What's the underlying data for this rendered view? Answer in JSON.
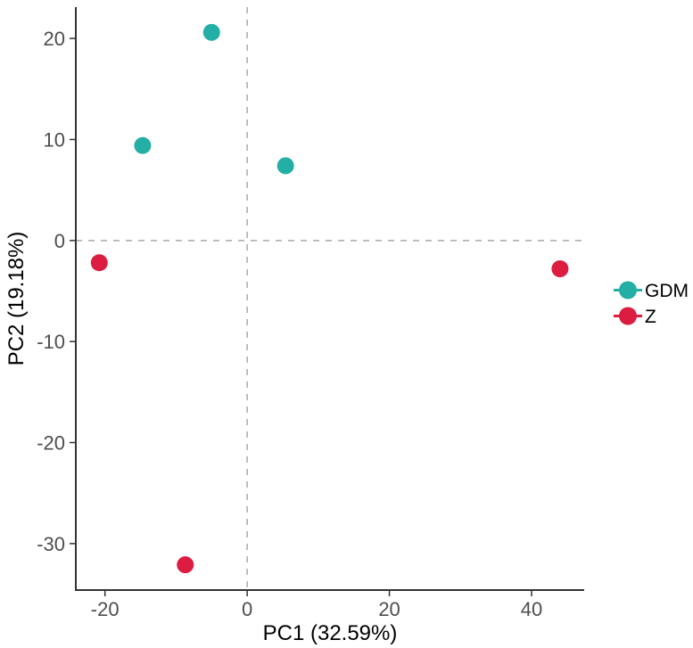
{
  "chart_data": {
    "type": "scatter",
    "title": "",
    "xlabel": "PC1 (32.59%)",
    "ylabel": "PC2 (19.18%)",
    "xlim": [
      -24.1,
      47.4
    ],
    "ylim": [
      -34.6,
      23.1
    ],
    "x_ticks": [
      -20,
      0,
      20,
      40
    ],
    "y_ticks": [
      20,
      10,
      0,
      -10,
      -20,
      -30
    ],
    "grid": false,
    "legend_position": "right-center",
    "reference_lines": [
      {
        "axis": "v",
        "value": 0,
        "style": "dashed"
      },
      {
        "axis": "h",
        "value": 0,
        "style": "dashed"
      }
    ],
    "series": [
      {
        "name": "GDM",
        "color": "#23afa6",
        "points": [
          [
            -5.0,
            20.6
          ],
          [
            -14.7,
            9.4
          ],
          [
            5.4,
            7.4
          ]
        ]
      },
      {
        "name": "Z",
        "color": "#dc1c41",
        "points": [
          [
            -20.8,
            -2.2
          ],
          [
            44.0,
            -2.8
          ],
          [
            -8.7,
            -32.1
          ]
        ]
      }
    ]
  },
  "colors": {
    "axis_line": "#333333",
    "tick_text": "#4d4d4d",
    "reference_line": "#a9a9a9",
    "background": "#ffffff"
  }
}
